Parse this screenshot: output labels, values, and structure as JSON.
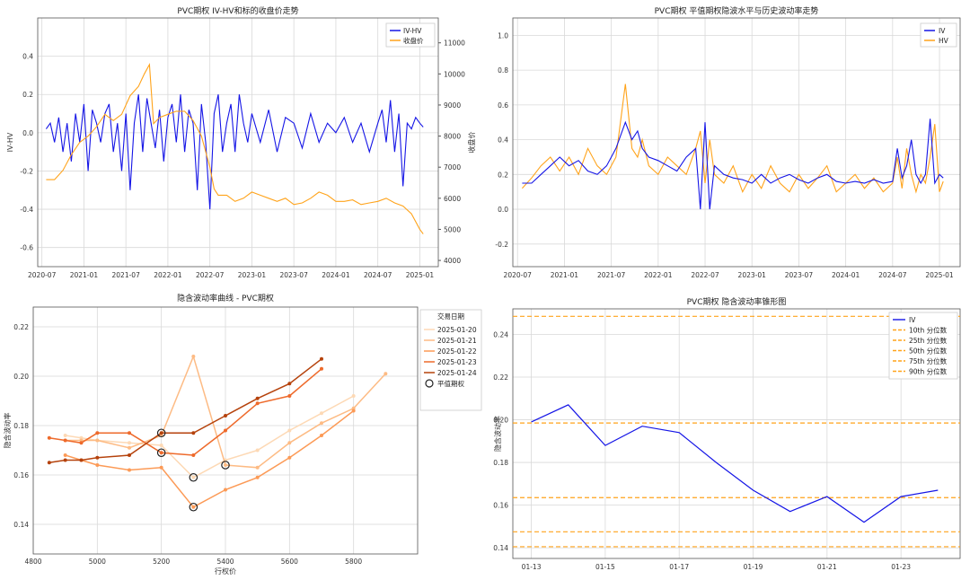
{
  "chart_data": [
    {
      "type": "line",
      "title": "PVC期权 IV-HV和标的收盘价走势",
      "ylabel_left": "IV-HV",
      "ylabel_right": "收盘价",
      "left_ticks": [
        "-0.6",
        "-0.4",
        "-0.2",
        "0.0",
        "0.2",
        "0.4"
      ],
      "right_ticks": [
        "4000",
        "5000",
        "6000",
        "7000",
        "8000",
        "9000",
        "10000",
        "11000"
      ],
      "x_ticks": [
        "2020-07",
        "2021-01",
        "2021-07",
        "2022-01",
        "2022-07",
        "2023-01",
        "2023-07",
        "2024-01",
        "2024-07",
        "2025-01"
      ],
      "ylim_left": [
        -0.7,
        0.6
      ],
      "ylim_right": [
        3800,
        11800
      ],
      "xlim": [
        2020.45,
        2025.22
      ],
      "legend_position": "top-right",
      "colors": {
        "iv_hv": "#1515e6",
        "close": "#ffa31a",
        "right_axis": "#d62728",
        "left_axis": "#1f77b4"
      },
      "series": [
        {
          "name": "IV-HV",
          "x": [
            2020.55,
            2020.6,
            2020.65,
            2020.7,
            2020.75,
            2020.8,
            2020.85,
            2020.9,
            2020.95,
            2021.0,
            2021.05,
            2021.1,
            2021.15,
            2021.2,
            2021.25,
            2021.3,
            2021.35,
            2021.4,
            2021.45,
            2021.5,
            2021.55,
            2021.6,
            2021.65,
            2021.7,
            2021.75,
            2021.8,
            2021.85,
            2021.9,
            2021.95,
            2022.0,
            2022.05,
            2022.1,
            2022.15,
            2022.2,
            2022.25,
            2022.3,
            2022.35,
            2022.4,
            2022.45,
            2022.5,
            2022.55,
            2022.6,
            2022.65,
            2022.7,
            2022.75,
            2022.8,
            2022.85,
            2022.9,
            2022.95,
            2023.0,
            2023.1,
            2023.2,
            2023.3,
            2023.4,
            2023.5,
            2023.6,
            2023.7,
            2023.8,
            2023.9,
            2024.0,
            2024.1,
            2024.2,
            2024.3,
            2024.4,
            2024.5,
            2024.55,
            2024.6,
            2024.65,
            2024.7,
            2024.75,
            2024.8,
            2024.85,
            2024.9,
            2024.95,
            2025.0,
            2025.04
          ],
          "values": [
            0.02,
            0.05,
            -0.05,
            0.08,
            -0.1,
            0.05,
            -0.15,
            0.1,
            -0.05,
            0.15,
            -0.2,
            0.12,
            0.05,
            -0.05,
            0.1,
            0.15,
            -0.1,
            0.05,
            -0.2,
            0.1,
            -0.3,
            0.05,
            0.2,
            -0.1,
            0.18,
            0.05,
            -0.08,
            0.12,
            -0.15,
            0.08,
            0.15,
            -0.05,
            0.2,
            -0.1,
            0.12,
            0.05,
            -0.3,
            0.15,
            -0.05,
            -0.4,
            0.1,
            0.2,
            -0.1,
            0.05,
            0.15,
            -0.1,
            0.2,
            0.05,
            -0.05,
            0.1,
            -0.05,
            0.12,
            -0.1,
            0.08,
            0.05,
            -0.08,
            0.1,
            -0.05,
            0.05,
            0.0,
            0.08,
            -0.05,
            0.05,
            -0.1,
            0.05,
            0.12,
            -0.05,
            0.17,
            -0.1,
            0.1,
            -0.28,
            0.05,
            0.02,
            0.08,
            0.05,
            0.03
          ]
        },
        {
          "name": "收盘价",
          "x": [
            2020.55,
            2020.65,
            2020.75,
            2020.85,
            2020.95,
            2021.05,
            2021.15,
            2021.25,
            2021.35,
            2021.45,
            2021.55,
            2021.65,
            2021.72,
            2021.78,
            2021.83,
            2021.9,
            2022.0,
            2022.1,
            2022.2,
            2022.3,
            2022.4,
            2022.5,
            2022.55,
            2022.6,
            2022.7,
            2022.8,
            2022.9,
            2023.0,
            2023.1,
            2023.2,
            2023.3,
            2023.4,
            2023.5,
            2023.6,
            2023.7,
            2023.8,
            2023.9,
            2024.0,
            2024.1,
            2024.2,
            2024.3,
            2024.4,
            2024.5,
            2024.6,
            2024.7,
            2024.8,
            2024.9,
            2025.0,
            2025.04
          ],
          "values": [
            6600,
            6600,
            6900,
            7400,
            7800,
            8000,
            8300,
            8700,
            8500,
            8700,
            9300,
            9600,
            10000,
            10300,
            8400,
            8600,
            8700,
            8800,
            8800,
            8500,
            8000,
            7000,
            6300,
            6100,
            6100,
            5900,
            6000,
            6200,
            6100,
            6000,
            5900,
            6000,
            5800,
            5850,
            6000,
            6200,
            6100,
            5900,
            5900,
            5950,
            5800,
            5850,
            5900,
            6000,
            5850,
            5750,
            5500,
            5000,
            4850
          ]
        }
      ]
    },
    {
      "type": "line",
      "title": "PVC期权 平值期权隐波水平与历史波动率走势",
      "y_ticks": [
        "-0.2",
        "0.0",
        "0.2",
        "0.4",
        "0.6",
        "0.8",
        "1.0"
      ],
      "x_ticks": [
        "2020-07",
        "2021-01",
        "2021-07",
        "2022-01",
        "2022-07",
        "2023-01",
        "2023-07",
        "2024-01",
        "2024-07",
        "2025-01"
      ],
      "ylim": [
        -0.33,
        1.1
      ],
      "xlim": [
        2020.45,
        2025.22
      ],
      "legend_position": "top-right",
      "colors": {
        "iv": "#1515e6",
        "hv": "#ffa31a"
      },
      "series": [
        {
          "name": "IV",
          "x": [
            2020.55,
            2020.65,
            2020.75,
            2020.85,
            2020.95,
            2021.05,
            2021.15,
            2021.25,
            2021.35,
            2021.45,
            2021.55,
            2021.65,
            2021.72,
            2021.78,
            2021.83,
            2021.9,
            2022.0,
            2022.1,
            2022.2,
            2022.3,
            2022.4,
            2022.45,
            2022.5,
            2022.55,
            2022.6,
            2022.7,
            2022.8,
            2022.9,
            2023.0,
            2023.1,
            2023.2,
            2023.3,
            2023.4,
            2023.5,
            2023.6,
            2023.7,
            2023.8,
            2023.9,
            2024.0,
            2024.1,
            2024.2,
            2024.3,
            2024.4,
            2024.5,
            2024.55,
            2024.6,
            2024.65,
            2024.7,
            2024.75,
            2024.8,
            2024.85,
            2024.9,
            2024.95,
            2025.0,
            2025.04
          ],
          "values": [
            0.15,
            0.15,
            0.2,
            0.25,
            0.3,
            0.25,
            0.28,
            0.22,
            0.2,
            0.25,
            0.35,
            0.5,
            0.4,
            0.45,
            0.35,
            0.3,
            0.28,
            0.25,
            0.22,
            0.3,
            0.35,
            0.0,
            0.5,
            0.0,
            0.25,
            0.2,
            0.18,
            0.17,
            0.15,
            0.2,
            0.15,
            0.18,
            0.2,
            0.17,
            0.15,
            0.18,
            0.2,
            0.16,
            0.15,
            0.16,
            0.15,
            0.17,
            0.15,
            0.16,
            0.35,
            0.18,
            0.25,
            0.4,
            0.2,
            0.15,
            0.2,
            0.52,
            0.15,
            0.2,
            0.18
          ]
        },
        {
          "name": "HV",
          "x": [
            2020.55,
            2020.65,
            2020.75,
            2020.85,
            2020.95,
            2021.05,
            2021.15,
            2021.25,
            2021.35,
            2021.45,
            2021.55,
            2021.65,
            2021.72,
            2021.78,
            2021.83,
            2021.9,
            2022.0,
            2022.1,
            2022.2,
            2022.3,
            2022.4,
            2022.45,
            2022.5,
            2022.55,
            2022.6,
            2022.7,
            2022.8,
            2022.9,
            2023.0,
            2023.1,
            2023.2,
            2023.3,
            2023.4,
            2023.5,
            2023.6,
            2023.7,
            2023.8,
            2023.9,
            2024.0,
            2024.1,
            2024.2,
            2024.3,
            2024.4,
            2024.5,
            2024.55,
            2024.6,
            2024.65,
            2024.7,
            2024.75,
            2024.8,
            2024.85,
            2024.9,
            2024.95,
            2025.0,
            2025.04
          ],
          "values": [
            0.12,
            0.18,
            0.25,
            0.3,
            0.22,
            0.3,
            0.2,
            0.35,
            0.25,
            0.2,
            0.3,
            0.72,
            0.35,
            0.3,
            0.4,
            0.25,
            0.2,
            0.3,
            0.25,
            0.2,
            0.35,
            0.45,
            0.15,
            0.4,
            0.2,
            0.15,
            0.25,
            0.1,
            0.2,
            0.12,
            0.25,
            0.15,
            0.1,
            0.2,
            0.12,
            0.18,
            0.25,
            0.1,
            0.15,
            0.2,
            0.12,
            0.18,
            0.1,
            0.15,
            0.3,
            0.12,
            0.35,
            0.2,
            0.1,
            0.2,
            0.15,
            0.3,
            0.49,
            0.1,
            0.16
          ]
        }
      ]
    },
    {
      "type": "line",
      "title": "隐含波动率曲线 - PVC期权",
      "xlabel": "行权价",
      "ylabel": "隐含波动率",
      "x_ticks": [
        "4800",
        "5000",
        "5200",
        "5400",
        "5600",
        "5800"
      ],
      "y_ticks": [
        "0.14",
        "0.16",
        "0.18",
        "0.20",
        "0.22"
      ],
      "xlim": [
        4800,
        6000
      ],
      "ylim": [
        0.128,
        0.228
      ],
      "legend_title": "交易日期",
      "legend_position": "top-right",
      "atm_label": "平值期权",
      "series": [
        {
          "name": "2025-01-20",
          "color": "#fdd9b5",
          "x": [
            4900,
            4950,
            5000,
            5100,
            5200,
            5300,
            5400,
            5500,
            5600,
            5700,
            5800
          ],
          "values": [
            0.176,
            0.175,
            0.174,
            0.173,
            0.172,
            0.159,
            0.166,
            0.17,
            0.178,
            0.185,
            0.192
          ],
          "atm_x": 5300,
          "atm_y": 0.159
        },
        {
          "name": "2025-01-21",
          "color": "#fdbb84",
          "x": [
            4900,
            4950,
            5000,
            5100,
            5200,
            5300,
            5400,
            5500,
            5600,
            5700,
            5800,
            5900
          ],
          "values": [
            0.174,
            0.174,
            0.174,
            0.171,
            0.176,
            0.208,
            0.164,
            0.163,
            0.173,
            0.181,
            0.187,
            0.201
          ],
          "atm_x": 5400,
          "atm_y": 0.164
        },
        {
          "name": "2025-01-22",
          "color": "#fc9a56",
          "x": [
            4900,
            4950,
            5000,
            5100,
            5200,
            5300,
            5400,
            5500,
            5600,
            5700,
            5800
          ],
          "values": [
            0.168,
            0.166,
            0.164,
            0.162,
            0.163,
            0.147,
            0.154,
            0.159,
            0.167,
            0.176,
            0.186
          ],
          "atm_x": 5300,
          "atm_y": 0.147
        },
        {
          "name": "2025-01-23",
          "color": "#ee6a2b",
          "x": [
            4850,
            4900,
            4950,
            5000,
            5100,
            5200,
            5300,
            5400,
            5500,
            5600,
            5700
          ],
          "values": [
            0.175,
            0.174,
            0.173,
            0.177,
            0.177,
            0.169,
            0.168,
            0.178,
            0.189,
            0.192,
            0.203
          ],
          "atm_x": 5200,
          "atm_y": 0.169
        },
        {
          "name": "2025-01-24",
          "color": "#b5420c",
          "x": [
            4850,
            4900,
            4950,
            5000,
            5100,
            5200,
            5300,
            5400,
            5500,
            5600,
            5700
          ],
          "values": [
            0.165,
            0.166,
            0.166,
            0.167,
            0.168,
            0.177,
            0.177,
            0.184,
            0.191,
            0.197,
            0.207
          ],
          "atm_x": 5200,
          "atm_y": 0.177
        }
      ]
    },
    {
      "type": "line",
      "title": "PVC期权 隐含波动率锥形图",
      "ylabel": "隐含波动率",
      "x_ticks": [
        "01-13",
        "01-15",
        "01-17",
        "01-19",
        "01-21",
        "01-23"
      ],
      "y_ticks": [
        "0.14",
        "0.16",
        "0.18",
        "0.20",
        "0.22",
        "0.24"
      ],
      "xlim": [
        12.5,
        24.6
      ],
      "ylim": [
        0.135,
        0.252
      ],
      "legend_position": "top-right",
      "series": [
        {
          "name": "IV",
          "color": "#1515e6",
          "x": [
            13,
            14,
            15,
            16,
            17,
            18,
            19,
            20,
            21,
            22,
            23,
            24
          ],
          "values": [
            0.199,
            0.207,
            0.188,
            0.197,
            0.194,
            0.18,
            0.167,
            0.157,
            0.164,
            0.152,
            0.164,
            0.167
          ]
        }
      ],
      "percentiles": [
        {
          "name": "10th 分位数",
          "value": 0.1405,
          "color": "#ffa31a"
        },
        {
          "name": "25th 分位数",
          "value": 0.1475,
          "color": "#ffa31a"
        },
        {
          "name": "50th 分位数",
          "value": 0.1635,
          "color": "#ffa31a"
        },
        {
          "name": "75th 分位数",
          "value": 0.1985,
          "color": "#ffa31a"
        },
        {
          "name": "90th 分位数",
          "value": 0.2485,
          "color": "#ffa31a"
        }
      ]
    }
  ]
}
